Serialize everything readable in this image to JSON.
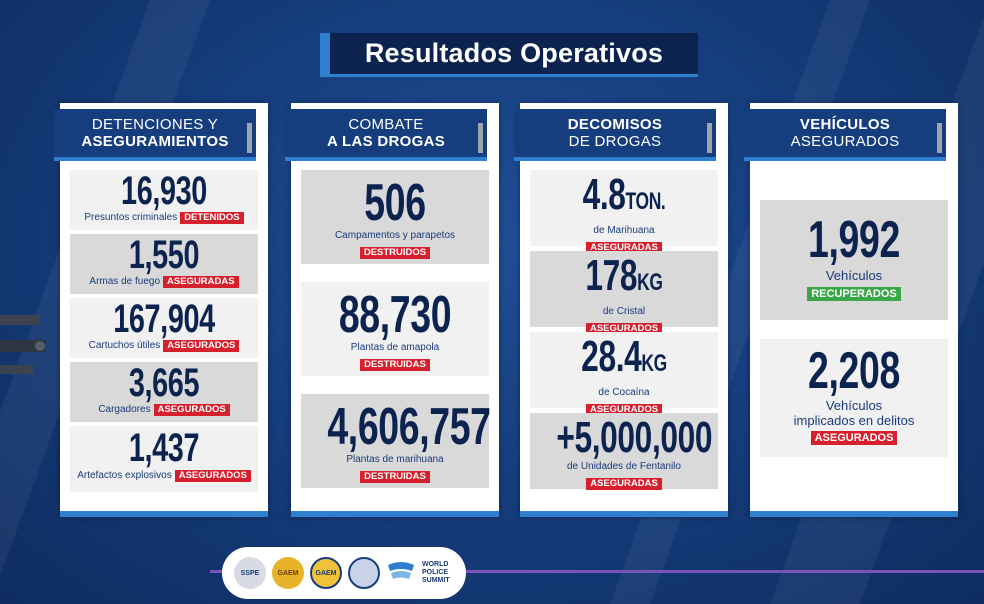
{
  "title": "Resultados Operativos",
  "panels": [
    {
      "head_l1": "DETENCIONES Y",
      "head_l2": "ASEGURAMIENTOS",
      "items": [
        {
          "value": "16,930",
          "desc": "Presuntos criminales",
          "tag": "DETENIDOS"
        },
        {
          "value": "1,550",
          "desc": "Armas de fuego",
          "tag": "ASEGURADAS"
        },
        {
          "value": "167,904",
          "desc": "Cartuchos útiles",
          "tag": "ASEGURADOS"
        },
        {
          "value": "3,665",
          "desc": "Cargadores",
          "tag": "ASEGURADOS"
        },
        {
          "value": "1,437",
          "desc": "Artefactos explosivos",
          "tag": "ASEGURADOS"
        }
      ]
    },
    {
      "head_l1": "COMBATE",
      "head_l2": "A LAS DROGAS",
      "items": [
        {
          "value": "506",
          "desc": "Campamentos y parapetos",
          "tag": "DESTRUIDOS"
        },
        {
          "value": "88,730",
          "desc": "Plantas de amapola",
          "tag": "DESTRUIDAS"
        },
        {
          "value": "4,606,757",
          "desc": "Plantas de marihuana",
          "tag": "DESTRUIDAS"
        }
      ]
    },
    {
      "head_l1": "DECOMISOS",
      "head_l2": "DE DROGAS",
      "items": [
        {
          "value": "4.8",
          "unit": "TON.",
          "desc": "de Marihuana",
          "tag": "ASEGURADAS"
        },
        {
          "value": "178",
          "unit": "KG",
          "desc": "de Cristal",
          "tag": "ASEGURADOS"
        },
        {
          "value": "28.4",
          "unit": "KG",
          "desc": "de Cocaína",
          "tag": "ASEGURADOS"
        },
        {
          "value": "+5,000,000",
          "unit": "",
          "desc": "de Unidades de Fentanilo",
          "tag": "ASEGURADAS"
        }
      ]
    },
    {
      "head_l1": "VEHÍCULOS",
      "head_l2": "ASEGURADOS",
      "items": [
        {
          "value": "1,992",
          "desc": "Vehículos",
          "tag": "RECUPERADOS"
        },
        {
          "value": "2,208",
          "desc_l1": "Vehículos",
          "desc_l2": "implicados en delitos",
          "tag": "ASEGURADOS"
        }
      ]
    }
  ],
  "footer": {
    "seal1": "SSPE",
    "seal2": "GAEM",
    "seal3": "GAEM",
    "wps_l1": "WORLD",
    "wps_l2": "POLICE",
    "wps_l3": "SUMMIT"
  },
  "colors": {
    "navy": "#163e7e",
    "accent": "#2f7fd0",
    "red_tag": "#d6202e",
    "green_tag": "#3aa64a"
  }
}
